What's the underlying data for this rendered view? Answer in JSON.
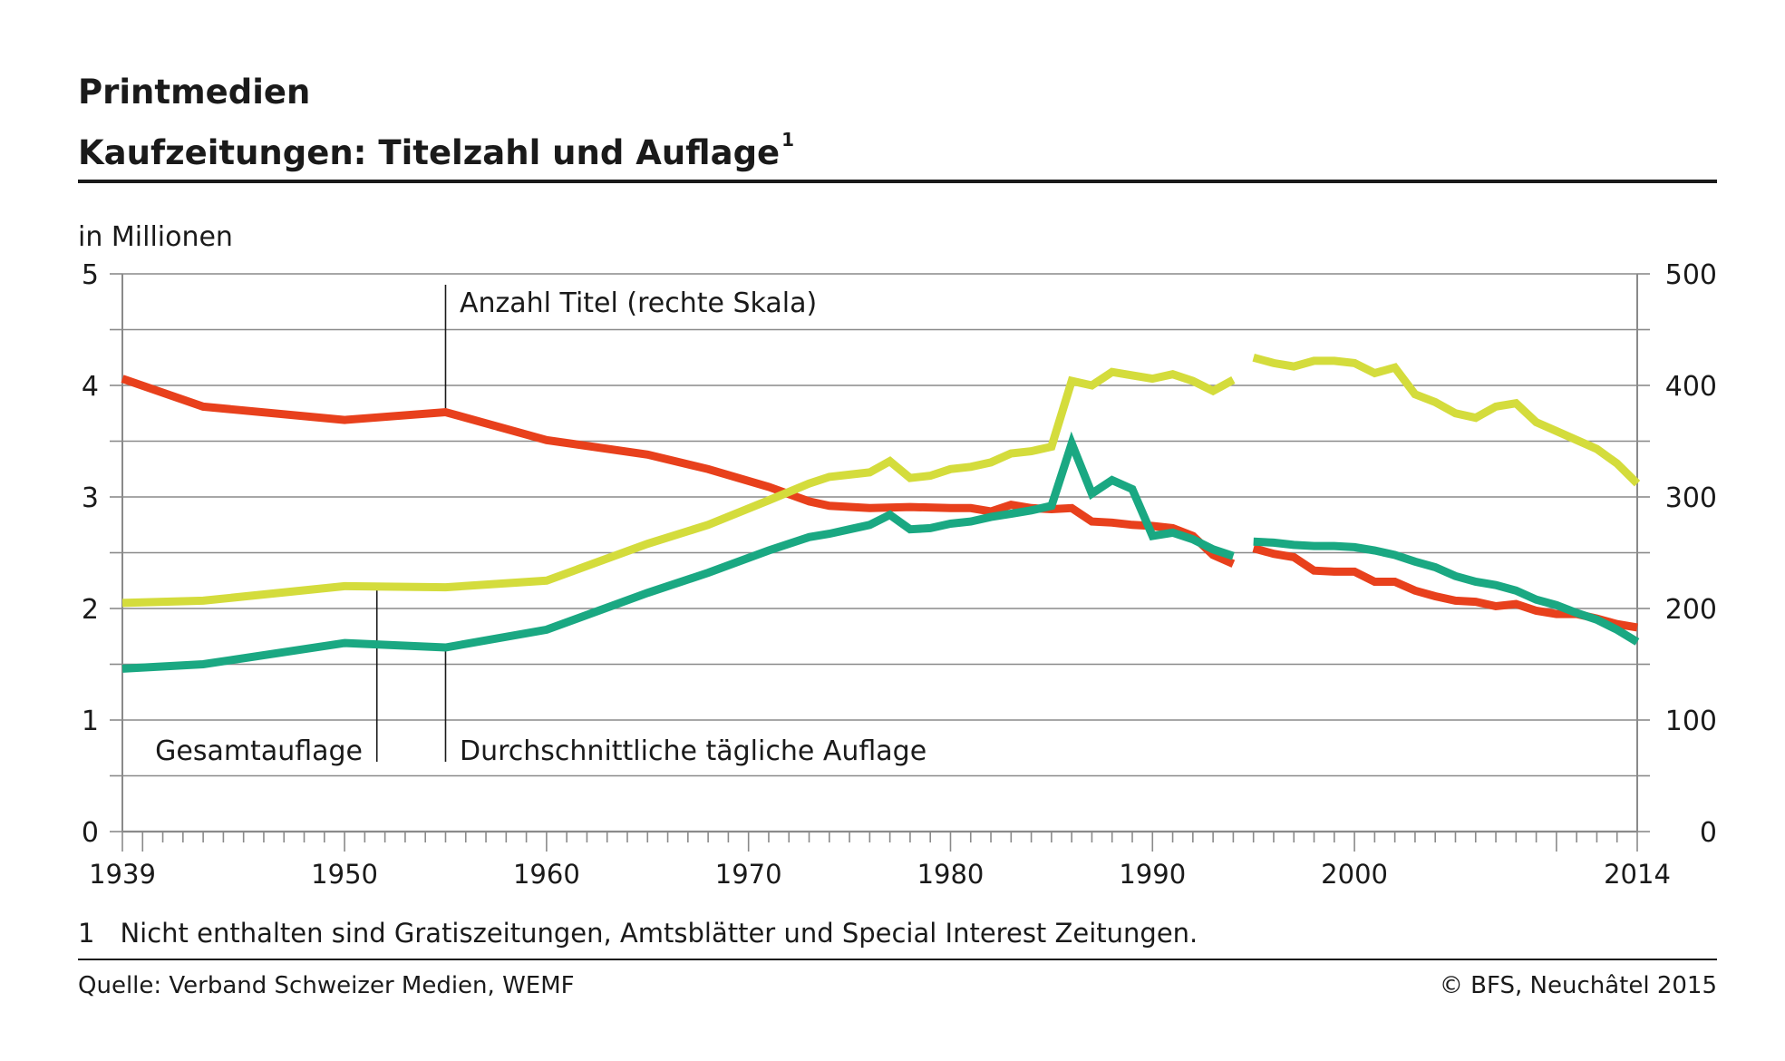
{
  "title": "Printmedien",
  "subtitle": "Kaufzeitungen: Titelzahl und Auflage",
  "subtitle_sup": "1",
  "footnote_num": "1",
  "footnote_text": "Nicht enthalten sind Gratiszeitungen, Amtsblätter und Special Interest Zeitungen.",
  "source": "Quelle: Verband Schweizer Medien, WEMF",
  "copyright": "© BFS, Neuchâtel 2015",
  "chart_data": {
    "type": "line",
    "y_left_label": "in Millionen",
    "y_left_range": [
      0,
      5
    ],
    "y_left_ticks": [
      "0",
      "1",
      "2",
      "3",
      "4",
      "5"
    ],
    "y_right_range": [
      0,
      500
    ],
    "y_right_ticks": [
      "0",
      "100",
      "200",
      "300",
      "400",
      "500"
    ],
    "x_range": [
      1939,
      2014
    ],
    "x_tick_labels": [
      "1939",
      "1950",
      "1960",
      "1970",
      "1980",
      "1990",
      "2000",
      "2014"
    ],
    "grid": "horizontal",
    "colors": {
      "anzahl_titel": "#e8401c",
      "gesamtauflage": "#d4dc3c",
      "durchschnittliche_auflage": "#1aa882"
    },
    "annotations": {
      "anzahl_titel": "Anzahl Titel (rechte Skala)",
      "gesamtauflage": "Gesamtauflage",
      "durchschnittliche_auflage": "Durchschnittliche tägliche Auflage"
    },
    "series": [
      {
        "key": "anzahl_titel",
        "axis": "right",
        "segments": [
          [
            [
              1939,
              406
            ],
            [
              1943,
              381
            ],
            [
              1950,
              369
            ],
            [
              1955,
              376
            ],
            [
              1960,
              351
            ],
            [
              1965,
              338
            ],
            [
              1968,
              325
            ],
            [
              1971,
              309
            ],
            [
              1973,
              296
            ],
            [
              1974,
              292
            ],
            [
              1976,
              290
            ],
            [
              1978,
              291
            ],
            [
              1980,
              290
            ],
            [
              1981,
              290
            ],
            [
              1982,
              287
            ],
            [
              1983,
              293
            ],
            [
              1984,
              290
            ],
            [
              1985,
              289
            ],
            [
              1986,
              290
            ],
            [
              1987,
              278
            ],
            [
              1988,
              277
            ],
            [
              1989,
              275
            ],
            [
              1990,
              274
            ],
            [
              1991,
              272
            ],
            [
              1992,
              265
            ],
            [
              1993,
              248
            ],
            [
              1994,
              240
            ]
          ],
          [
            [
              1995,
              254
            ],
            [
              1996,
              249
            ],
            [
              1997,
              246
            ],
            [
              1998,
              234
            ],
            [
              1999,
              233
            ],
            [
              2000,
              233
            ],
            [
              2001,
              224
            ],
            [
              2002,
              224
            ],
            [
              2003,
              216
            ],
            [
              2004,
              211
            ],
            [
              2005,
              207
            ],
            [
              2006,
              206
            ],
            [
              2007,
              202
            ],
            [
              2008,
              204
            ],
            [
              2009,
              198
            ],
            [
              2010,
              195
            ],
            [
              2011,
              195
            ],
            [
              2012,
              191
            ],
            [
              2013,
              186
            ],
            [
              2014,
              183
            ]
          ]
        ]
      },
      {
        "key": "gesamtauflage",
        "axis": "left",
        "segments": [
          [
            [
              1939,
              2.05
            ],
            [
              1943,
              2.07
            ],
            [
              1950,
              2.2
            ],
            [
              1955,
              2.19
            ],
            [
              1960,
              2.25
            ],
            [
              1965,
              2.58
            ],
            [
              1968,
              2.75
            ],
            [
              1971,
              2.97
            ],
            [
              1973,
              3.12
            ],
            [
              1974,
              3.18
            ],
            [
              1975,
              3.2
            ],
            [
              1976,
              3.22
            ],
            [
              1977,
              3.32
            ],
            [
              1978,
              3.17
            ],
            [
              1979,
              3.19
            ],
            [
              1980,
              3.25
            ],
            [
              1981,
              3.27
            ],
            [
              1982,
              3.31
            ],
            [
              1983,
              3.39
            ],
            [
              1984,
              3.41
            ],
            [
              1985,
              3.45
            ],
            [
              1986,
              4.04
            ],
            [
              1987,
              4.0
            ],
            [
              1988,
              4.12
            ],
            [
              1989,
              4.09
            ],
            [
              1990,
              4.06
            ],
            [
              1991,
              4.1
            ],
            [
              1992,
              4.04
            ],
            [
              1993,
              3.95
            ],
            [
              1994,
              4.05
            ]
          ],
          [
            [
              1995,
              4.25
            ],
            [
              1996,
              4.2
            ],
            [
              1997,
              4.17
            ],
            [
              1998,
              4.22
            ],
            [
              1999,
              4.22
            ],
            [
              2000,
              4.2
            ],
            [
              2001,
              4.11
            ],
            [
              2002,
              4.16
            ],
            [
              2003,
              3.92
            ],
            [
              2004,
              3.85
            ],
            [
              2005,
              3.75
            ],
            [
              2006,
              3.71
            ],
            [
              2007,
              3.81
            ],
            [
              2008,
              3.84
            ],
            [
              2009,
              3.67
            ],
            [
              2010,
              3.59
            ],
            [
              2011,
              3.51
            ],
            [
              2012,
              3.43
            ],
            [
              2013,
              3.3
            ],
            [
              2014,
              3.12
            ]
          ]
        ]
      },
      {
        "key": "durchschnittliche_auflage",
        "axis": "left",
        "segments": [
          [
            [
              1939,
              1.46
            ],
            [
              1943,
              1.5
            ],
            [
              1950,
              1.69
            ],
            [
              1955,
              1.65
            ],
            [
              1960,
              1.81
            ],
            [
              1965,
              2.14
            ],
            [
              1968,
              2.32
            ],
            [
              1971,
              2.52
            ],
            [
              1973,
              2.64
            ],
            [
              1974,
              2.67
            ],
            [
              1975,
              2.71
            ],
            [
              1976,
              2.75
            ],
            [
              1977,
              2.84
            ],
            [
              1978,
              2.71
            ],
            [
              1979,
              2.72
            ],
            [
              1980,
              2.76
            ],
            [
              1981,
              2.78
            ],
            [
              1982,
              2.82
            ],
            [
              1983,
              2.85
            ],
            [
              1984,
              2.88
            ],
            [
              1985,
              2.92
            ],
            [
              1986,
              3.48
            ],
            [
              1987,
              3.03
            ],
            [
              1988,
              3.15
            ],
            [
              1989,
              3.07
            ],
            [
              1990,
              2.65
            ],
            [
              1991,
              2.68
            ],
            [
              1992,
              2.62
            ],
            [
              1993,
              2.53
            ],
            [
              1994,
              2.47
            ]
          ],
          [
            [
              1995,
              2.6
            ],
            [
              1996,
              2.59
            ],
            [
              1997,
              2.57
            ],
            [
              1998,
              2.56
            ],
            [
              1999,
              2.56
            ],
            [
              2000,
              2.55
            ],
            [
              2001,
              2.52
            ],
            [
              2002,
              2.48
            ],
            [
              2003,
              2.42
            ],
            [
              2004,
              2.37
            ],
            [
              2005,
              2.29
            ],
            [
              2006,
              2.24
            ],
            [
              2007,
              2.21
            ],
            [
              2008,
              2.16
            ],
            [
              2009,
              2.08
            ],
            [
              2010,
              2.03
            ],
            [
              2011,
              1.96
            ],
            [
              2012,
              1.9
            ],
            [
              2013,
              1.81
            ],
            [
              2014,
              1.7
            ]
          ]
        ]
      }
    ]
  }
}
